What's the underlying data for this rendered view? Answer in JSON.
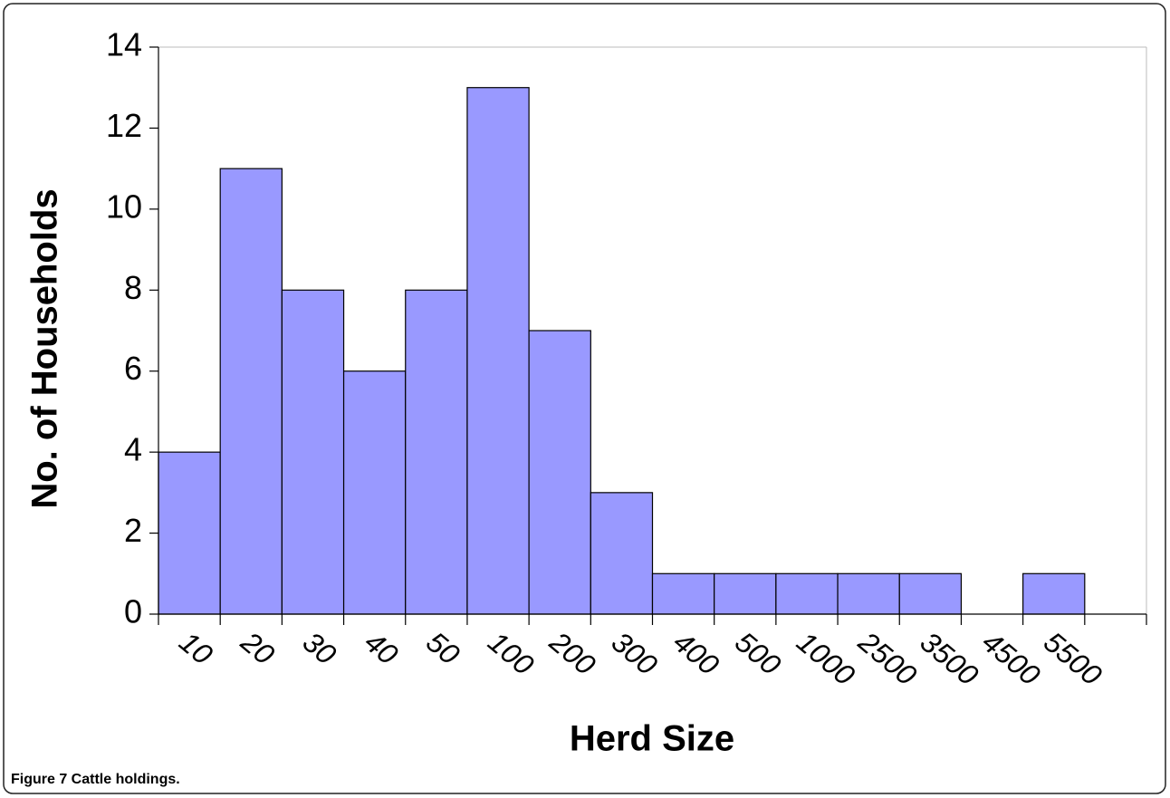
{
  "chart_data": {
    "type": "bar",
    "xlabel": "Herd Size",
    "ylabel": "No. of Households",
    "categories": [
      "10",
      "20",
      "30",
      "40",
      "50",
      "100",
      "200",
      "300",
      "400",
      "500",
      "1000",
      "2500",
      "3500",
      "4500",
      "5500"
    ],
    "values": [
      4,
      11,
      8,
      6,
      8,
      13,
      7,
      3,
      1,
      1,
      1,
      1,
      1,
      0,
      1
    ],
    "color": "#9999ff",
    "ylim": [
      0,
      14
    ],
    "yticks": [
      0,
      2,
      4,
      6,
      8,
      10,
      12,
      14
    ],
    "grid": false
  },
  "caption": "Figure 7 Cattle holdings."
}
